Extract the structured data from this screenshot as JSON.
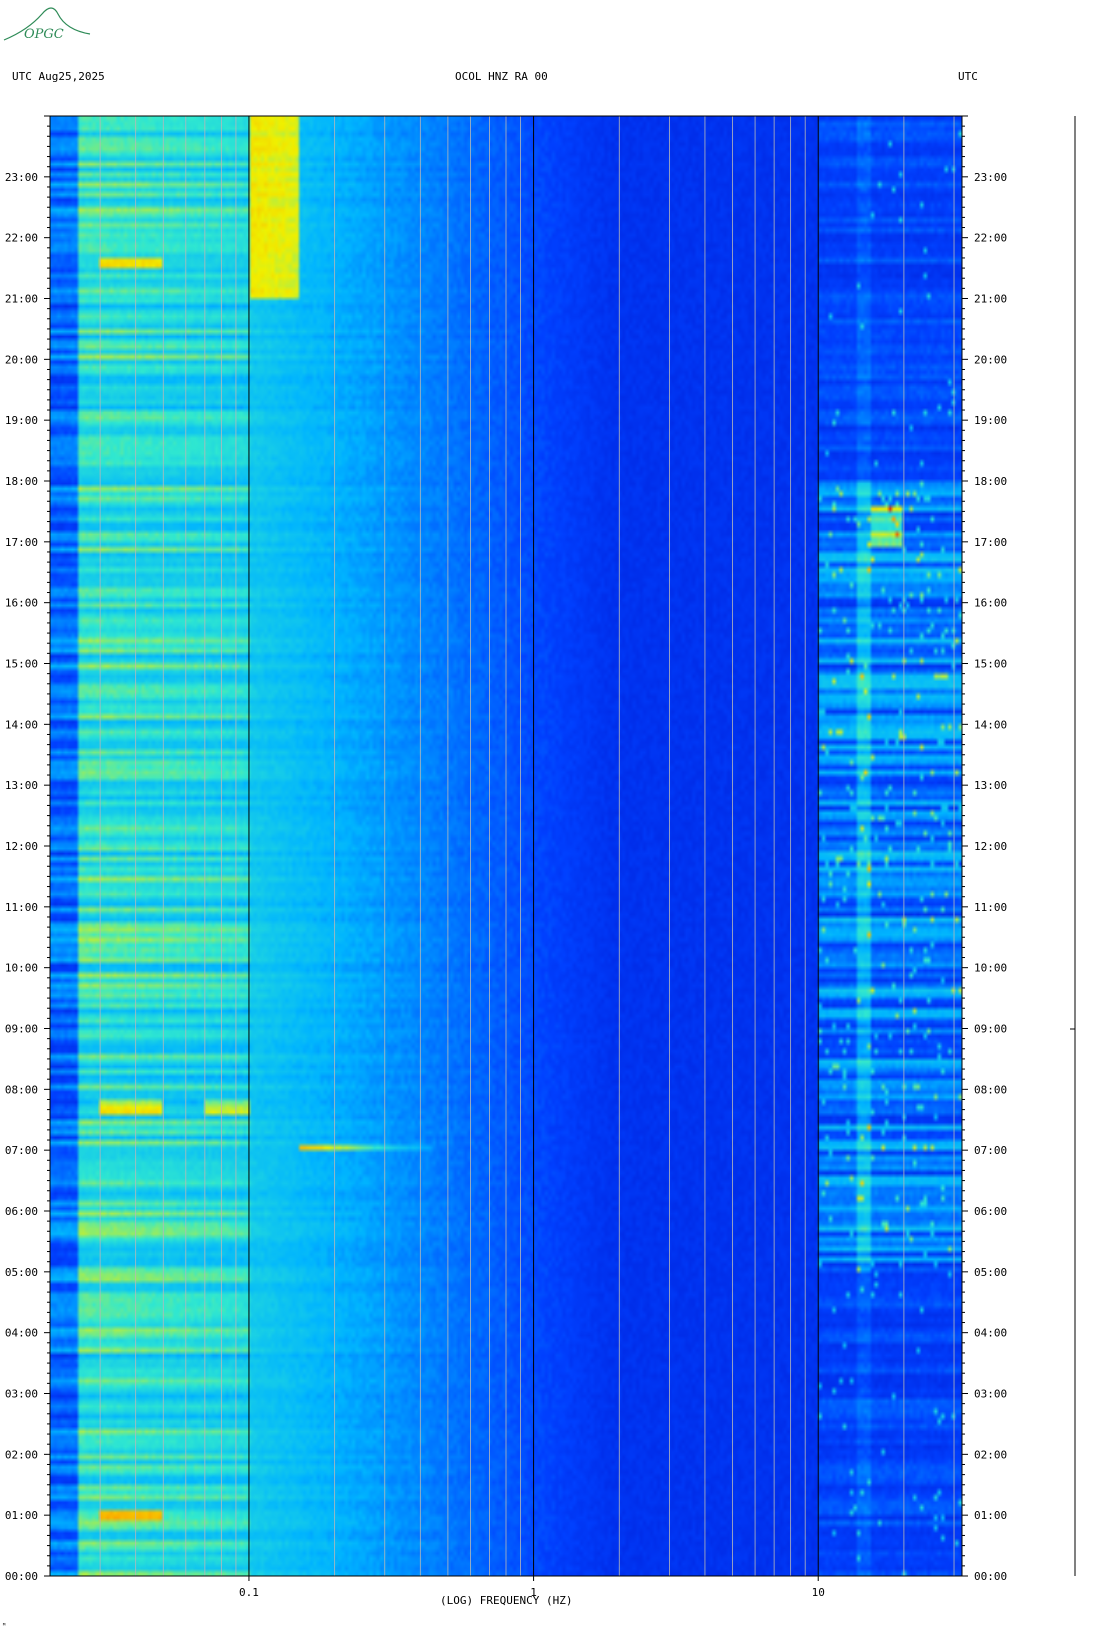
{
  "header": {
    "left": "UTC  Aug25,2025",
    "center": "OCOL HNZ RA 00",
    "right": "UTC"
  },
  "logo": {
    "text": "OPGC",
    "color": "#2e8b57"
  },
  "footer": {
    "mark": "ᴹ"
  },
  "chart_data": {
    "type": "heatmap",
    "title": "OCOL HNZ RA 00",
    "date": "Aug25,2025",
    "xlabel": "(LOG) FREQUENCY (HZ)",
    "ylabel": "UTC",
    "x_scale": "log",
    "xlim": [
      0.02,
      32
    ],
    "x_ticks": [
      {
        "value": 0.1,
        "label": "0.1"
      },
      {
        "value": 1,
        "label": "1"
      },
      {
        "value": 10,
        "label": "10"
      }
    ],
    "ylim": [
      "00:00",
      "24:00"
    ],
    "y_ticks": [
      "00:00",
      "01:00",
      "02:00",
      "03:00",
      "04:00",
      "05:00",
      "06:00",
      "07:00",
      "08:00",
      "09:00",
      "10:00",
      "11:00",
      "12:00",
      "13:00",
      "14:00",
      "15:00",
      "16:00",
      "17:00",
      "18:00",
      "19:00",
      "20:00",
      "21:00",
      "22:00",
      "23:00"
    ],
    "colormap": [
      "#0010c8",
      "#0040ff",
      "#00b4ff",
      "#30e8d0",
      "#f0f000",
      "#ff9000",
      "#d00000"
    ],
    "features": [
      {
        "name": "low-frequency band",
        "x": [
          0.02,
          0.1
        ],
        "level": "high"
      },
      {
        "name": "microseism band",
        "x": [
          0.1,
          0.15
        ],
        "y": [
          "21:00",
          "24:00"
        ],
        "level": "very high"
      },
      {
        "name": "event",
        "x": [
          0.15,
          0.5
        ],
        "y": "07:00",
        "level": "high"
      },
      {
        "name": "daytime cultural noise",
        "x": [
          10,
          32
        ],
        "y": [
          "05:00",
          "18:00"
        ],
        "level": "high"
      },
      {
        "name": "hotspot",
        "x": 17,
        "y": "17:25",
        "level": "very high"
      }
    ]
  }
}
